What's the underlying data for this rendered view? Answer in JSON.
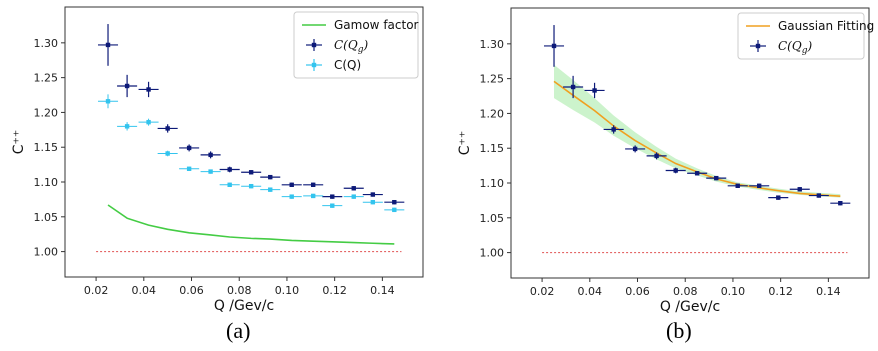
{
  "captions": {
    "a": "(a)",
    "b": "(b)"
  },
  "colors": {
    "gamow": "#44cc44",
    "cqg": "#0d1a78",
    "cq": "#33c4ee",
    "fit": "#f0a020",
    "band": "#c6f2c6",
    "ref": "#e05050"
  },
  "chart_data": [
    {
      "type": "scatter",
      "xlabel": "Q /Gev/c",
      "ylabel": "C⁺⁺",
      "xlim": [
        0.012,
        0.152
      ],
      "ylim": [
        0.975,
        1.34
      ],
      "xticks": [
        "0.02",
        "0.04",
        "0.06",
        "0.08",
        "0.10",
        "0.12",
        "0.14"
      ],
      "yticks": [
        "1.00",
        "1.05",
        "1.10",
        "1.15",
        "1.20",
        "1.25",
        "1.30"
      ],
      "legend_position": "top-right",
      "legend": [
        {
          "label": "Gamow factor",
          "kind": "line"
        },
        {
          "label": "C(Q",
          "sub": "g",
          "tail": ")",
          "kind": "errorbar-dark"
        },
        {
          "label": "C(Q)",
          "kind": "errorbar-light"
        }
      ],
      "series": [
        {
          "name": "C(Qg)",
          "x": [
            0.025,
            0.033,
            0.042,
            0.05,
            0.059,
            0.068,
            0.076,
            0.085,
            0.093,
            0.102,
            0.111,
            0.119,
            0.128,
            0.136,
            0.145
          ],
          "y": [
            1.297,
            1.238,
            1.233,
            1.177,
            1.149,
            1.139,
            1.118,
            1.114,
            1.107,
            1.096,
            1.096,
            1.079,
            1.091,
            1.082,
            1.071
          ],
          "xerr": 0.0042,
          "yerr": [
            0.03,
            0.016,
            0.011,
            0.006,
            0.005,
            0.005,
            0.004,
            0.003,
            0.003,
            0.003,
            0.003,
            0.003,
            0.003,
            0.003,
            0.003
          ]
        },
        {
          "name": "C(Q)",
          "x": [
            0.025,
            0.033,
            0.042,
            0.05,
            0.059,
            0.068,
            0.076,
            0.085,
            0.093,
            0.102,
            0.111,
            0.119,
            0.128,
            0.136,
            0.145
          ],
          "y": [
            1.216,
            1.18,
            1.186,
            1.141,
            1.119,
            1.115,
            1.096,
            1.094,
            1.089,
            1.079,
            1.08,
            1.066,
            1.079,
            1.071,
            1.06
          ],
          "xerr": 0.0042,
          "yerr": [
            0.01,
            0.006,
            0.005,
            0.004,
            0.003,
            0.003,
            0.003,
            0.003,
            0.003,
            0.003,
            0.003,
            0.003,
            0.003,
            0.003,
            0.003
          ]
        },
        {
          "name": "Gamow factor",
          "x": [
            0.025,
            0.033,
            0.042,
            0.05,
            0.059,
            0.068,
            0.076,
            0.085,
            0.093,
            0.102,
            0.111,
            0.119,
            0.128,
            0.136,
            0.145
          ],
          "y": [
            1.067,
            1.048,
            1.038,
            1.032,
            1.027,
            1.024,
            1.021,
            1.019,
            1.018,
            1.016,
            1.015,
            1.014,
            1.013,
            1.012,
            1.011
          ]
        }
      ],
      "reference_line": {
        "y": 1.0,
        "x": [
          0.02,
          0.148
        ]
      }
    },
    {
      "type": "scatter",
      "xlabel": "Q /Gev/c",
      "ylabel": "C⁺⁺",
      "xlim": [
        0.012,
        0.152
      ],
      "ylim": [
        0.975,
        1.34
      ],
      "xticks": [
        "0.02",
        "0.04",
        "0.06",
        "0.08",
        "0.10",
        "0.12",
        "0.14"
      ],
      "yticks": [
        "1.00",
        "1.05",
        "1.10",
        "1.15",
        "1.20",
        "1.25",
        "1.30"
      ],
      "legend_position": "top-right",
      "legend": [
        {
          "label": "Gaussian Fitting",
          "kind": "line"
        },
        {
          "label": "C(Q",
          "sub": "g",
          "tail": ")",
          "kind": "errorbar-dark"
        }
      ],
      "series": [
        {
          "name": "C(Qg)",
          "x": [
            0.025,
            0.033,
            0.042,
            0.05,
            0.059,
            0.068,
            0.076,
            0.085,
            0.093,
            0.102,
            0.111,
            0.119,
            0.128,
            0.136,
            0.145
          ],
          "y": [
            1.297,
            1.238,
            1.233,
            1.177,
            1.149,
            1.139,
            1.118,
            1.114,
            1.107,
            1.096,
            1.096,
            1.079,
            1.091,
            1.082,
            1.071
          ],
          "xerr": 0.0042,
          "yerr": [
            0.03,
            0.016,
            0.011,
            0.006,
            0.005,
            0.005,
            0.004,
            0.003,
            0.003,
            0.003,
            0.003,
            0.003,
            0.003,
            0.003,
            0.003
          ]
        },
        {
          "name": "Gaussian Fitting",
          "x": [
            0.025,
            0.033,
            0.042,
            0.05,
            0.059,
            0.068,
            0.076,
            0.085,
            0.093,
            0.102,
            0.111,
            0.119,
            0.128,
            0.136,
            0.145
          ],
          "y": [
            1.246,
            1.226,
            1.204,
            1.182,
            1.161,
            1.143,
            1.128,
            1.116,
            1.106,
            1.098,
            1.093,
            1.089,
            1.085,
            1.083,
            1.081
          ],
          "band_low": [
            1.222,
            1.205,
            1.187,
            1.168,
            1.15,
            1.134,
            1.121,
            1.111,
            1.102,
            1.095,
            1.09,
            1.086,
            1.083,
            1.081,
            1.079
          ],
          "band_high": [
            1.27,
            1.248,
            1.222,
            1.197,
            1.173,
            1.152,
            1.135,
            1.121,
            1.11,
            1.101,
            1.096,
            1.092,
            1.088,
            1.086,
            1.084
          ]
        }
      ],
      "reference_line": {
        "y": 1.0,
        "x": [
          0.02,
          0.148
        ]
      }
    }
  ]
}
